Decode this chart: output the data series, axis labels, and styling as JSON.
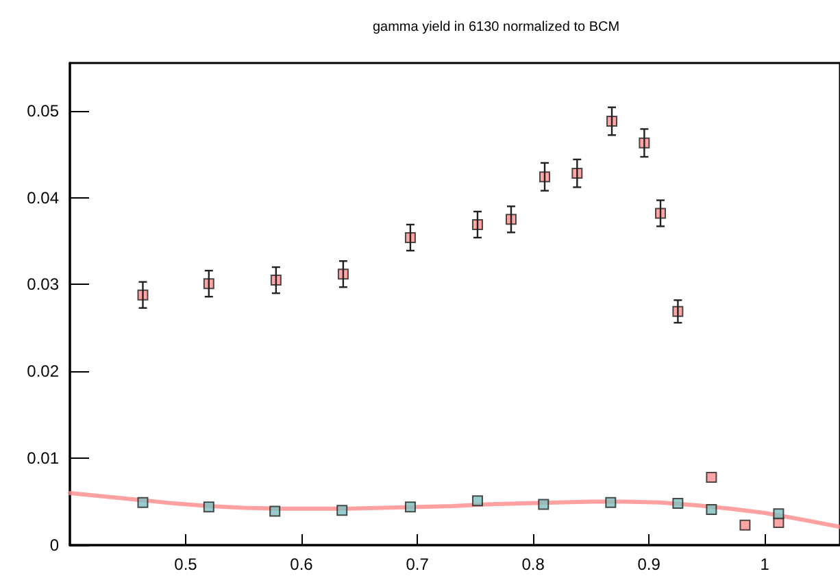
{
  "chart_data": {
    "type": "scatter",
    "title": "gamma yield in 6130 normalized to BCM",
    "xlim": [
      0.4,
      1.065
    ],
    "xticks": [
      0.5,
      0.6,
      0.7,
      0.8,
      0.9,
      1
    ],
    "ylim": [
      0,
      0.0555
    ],
    "yticks": [
      0,
      0.01,
      0.02,
      0.03,
      0.04,
      0.05
    ],
    "marker": "square",
    "series": [
      {
        "color": "#ff8f8f",
        "x": [
          0.463,
          0.52,
          0.578,
          0.636,
          0.694,
          0.752,
          0.781,
          0.81,
          0.838,
          0.868,
          0.896,
          0.91,
          0.925,
          0.954,
          0.983,
          1.012
        ],
        "values": [
          0.0288,
          0.0301,
          0.0305,
          0.0312,
          0.0354,
          0.0369,
          0.0375,
          0.0424,
          0.0428,
          0.0488,
          0.0463,
          0.0382,
          0.0269,
          0.0078,
          0.0023,
          0.0026
        ],
        "errors": [
          0.0015,
          0.0015,
          0.0015,
          0.0015,
          0.0015,
          0.0015,
          0.0015,
          0.0016,
          0.0016,
          0.0016,
          0.0016,
          0.0015,
          0.0013,
          null,
          null,
          null
        ]
      },
      {
        "color": "#7fbfbf",
        "x": [
          0.463,
          0.52,
          0.577,
          0.635,
          0.694,
          0.752,
          0.809,
          0.867,
          0.925,
          0.954,
          1.012
        ],
        "values": [
          0.0049,
          0.0044,
          0.0039,
          0.004,
          0.0044,
          0.0051,
          0.0047,
          0.0049,
          0.0048,
          0.0041,
          0.0036
        ]
      },
      {
        "type": "line",
        "color": "#ff8a8a",
        "marker": "none",
        "x": [
          0.4,
          0.43,
          0.46,
          0.49,
          0.52,
          0.55,
          0.58,
          0.61,
          0.64,
          0.67,
          0.7,
          0.73,
          0.76,
          0.79,
          0.82,
          0.85,
          0.88,
          0.91,
          0.94,
          0.97,
          1.0,
          1.03,
          1.065
        ],
        "values": [
          0.006,
          0.0056,
          0.0052,
          0.0048,
          0.0045,
          0.0043,
          0.0042,
          0.0042,
          0.0042,
          0.0043,
          0.0044,
          0.0045,
          0.0047,
          0.0048,
          0.0049,
          0.005,
          0.005,
          0.0049,
          0.0046,
          0.0042,
          0.0037,
          0.003,
          0.0021
        ]
      }
    ]
  }
}
